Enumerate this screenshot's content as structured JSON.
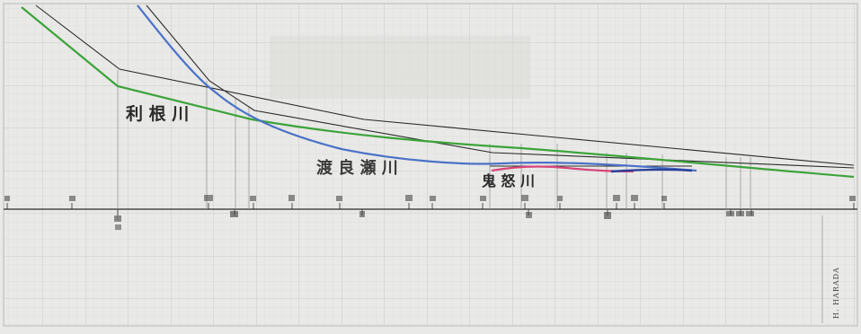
{
  "river_labels": {
    "tone": "利 根 川",
    "kinugawa": "鬼 怒 川",
    "watarase": "渡 良 瀬 川"
  },
  "signature": "H. HARADA",
  "colors": {
    "paper": "#e9e9e7",
    "grid": "#c9cbc8",
    "ink": "#2a2a2a",
    "tone_river": "#3ca33a",
    "watarase_river": "#4a72c8",
    "kinugawa_river": "#d8457a",
    "dark_blue": "#2b3f9a"
  },
  "icons": [
    "profile-line",
    "station-tick"
  ]
}
